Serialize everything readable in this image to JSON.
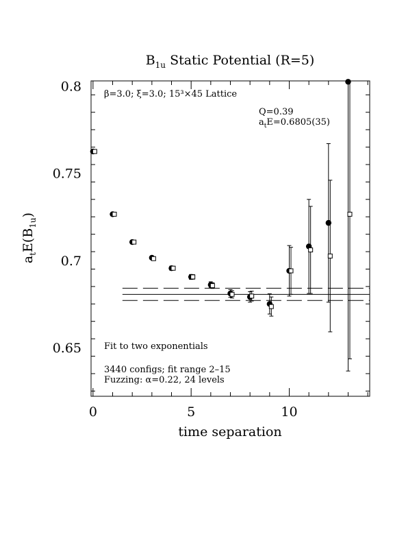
{
  "chart_data": {
    "type": "scatter",
    "title": "B",
    "title_sub": "1u",
    "title_rest": " Static Potential (R=5)",
    "xlabel": "time separation",
    "ylabel_main": "a",
    "ylabel_sub1": "t",
    "ylabel_mid": "E(B",
    "ylabel_sub2": "1u",
    "ylabel_end": ")",
    "xlim": [
      -0.1,
      14.1
    ],
    "ylim": [
      0.622,
      0.803
    ],
    "x_ticks": [
      0,
      5,
      10
    ],
    "x_tick_labels": [
      "0",
      "5",
      "10"
    ],
    "y_ticks": [
      0.65,
      0.7,
      0.75,
      0.8
    ],
    "y_tick_labels": [
      "0.65",
      "0.7",
      "0.75",
      "0.8"
    ],
    "grid": false,
    "legend": "none",
    "annotations": {
      "lattice": "β=3.0; ξ=3.0; 15³×45 Lattice",
      "q": "Q=0.39",
      "fit_energy_main": "a",
      "fit_energy_sub": "t",
      "fit_energy_rest": "E=0.6805(35)",
      "fit_type": "Fit to two exponentials",
      "configs": "3440 configs; fit range 2–15",
      "fuzzing": "Fuzzing: α=0.22, 24 levels"
    },
    "fit": {
      "value": 0.6805,
      "error": 0.0035,
      "x_range": [
        1.5,
        14.1
      ]
    },
    "series": [
      {
        "marker": "filled-circle",
        "x": [
          0,
          1,
          2,
          3,
          4,
          5,
          6,
          7,
          8,
          9,
          10,
          11,
          12,
          13
        ],
        "y": [
          0.7625,
          0.7265,
          0.7105,
          0.7015,
          0.6955,
          0.6905,
          0.686,
          0.681,
          0.679,
          0.675,
          0.694,
          0.708,
          0.7215,
          0.8025
        ],
        "err": [
          0.0008,
          0.0008,
          0.0009,
          0.001,
          0.0012,
          0.0014,
          0.0017,
          0.0022,
          0.003,
          0.0058,
          0.0145,
          0.027,
          0.0455,
          0.166
        ]
      },
      {
        "marker": "open-square",
        "x": [
          0,
          1,
          2,
          3,
          4,
          5,
          6,
          7,
          8,
          9,
          10,
          11,
          12,
          13
        ],
        "y": [
          0.7625,
          0.7265,
          0.7105,
          0.701,
          0.6955,
          0.6905,
          0.6855,
          0.6805,
          0.6795,
          0.6735,
          0.694,
          0.706,
          0.7025,
          0.7265
        ],
        "err": [
          0.0008,
          0.0008,
          0.0009,
          0.001,
          0.0011,
          0.0013,
          0.0016,
          0.0021,
          0.0028,
          0.0055,
          0.0135,
          0.025,
          0.0435,
          0.083
        ]
      }
    ]
  }
}
